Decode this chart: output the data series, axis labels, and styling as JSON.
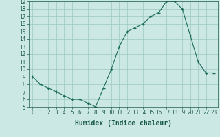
{
  "x": [
    0,
    1,
    2,
    3,
    4,
    5,
    6,
    7,
    8,
    9,
    10,
    11,
    12,
    13,
    14,
    15,
    16,
    17,
    18,
    19,
    20,
    21,
    22,
    23
  ],
  "y": [
    9.0,
    8.0,
    7.5,
    7.0,
    6.5,
    6.0,
    6.0,
    5.5,
    5.0,
    7.5,
    10.0,
    13.0,
    15.0,
    15.5,
    16.0,
    17.0,
    17.5,
    19.0,
    19.0,
    18.0,
    14.5,
    11.0,
    9.5,
    9.5
  ],
  "xlabel": "Humidex (Indice chaleur)",
  "ylim": [
    5,
    19
  ],
  "xlim": [
    -0.5,
    23.5
  ],
  "yticks": [
    5,
    6,
    7,
    8,
    9,
    10,
    11,
    12,
    13,
    14,
    15,
    16,
    17,
    18,
    19
  ],
  "xticks": [
    0,
    1,
    2,
    3,
    4,
    5,
    6,
    7,
    8,
    9,
    10,
    11,
    12,
    13,
    14,
    15,
    16,
    17,
    18,
    19,
    20,
    21,
    22,
    23
  ],
  "xtick_labels": [
    "0",
    "1",
    "2",
    "3",
    "4",
    "5",
    "6",
    "7",
    "8",
    "9",
    "10",
    "11",
    "12",
    "13",
    "14",
    "15",
    "16",
    "17",
    "18",
    "19",
    "20",
    "21",
    "22",
    "23"
  ],
  "line_color": "#1a6b5a",
  "marker_color": "#1a6b5a",
  "bg_color": "#cce8e4",
  "grid_color": "#9ec8c4",
  "text_color": "#1a5a4a",
  "xlabel_fontsize": 7,
  "tick_fontsize": 5.5
}
